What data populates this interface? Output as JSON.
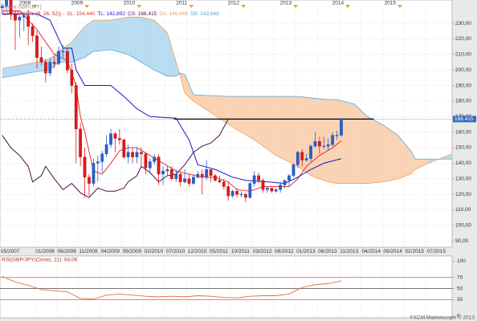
{
  "chart_data": [
    {
      "type": "candlestick",
      "title": "[Price GBP/JPY]",
      "subtitle": "ICH(GBP/JPY (9, 26, 52)) -",
      "x": [
        "05/2007",
        "06/2007",
        "07/2007",
        "08/2007",
        "09/2007",
        "10/2007",
        "11/2007",
        "12/2007",
        "01/2008",
        "02/2008",
        "03/2008",
        "04/2008",
        "05/2008",
        "06/2008",
        "07/2008",
        "08/2008",
        "09/2008",
        "10/2008",
        "11/2008",
        "12/2008",
        "01/2009",
        "02/2009",
        "03/2009",
        "04/2009",
        "05/2009",
        "06/2009",
        "07/2009",
        "08/2009",
        "09/2009",
        "10/2009",
        "11/2009",
        "12/2009",
        "01/2010",
        "02/2010",
        "03/2010",
        "04/2010",
        "05/2010",
        "06/2010",
        "07/2010",
        "08/2010",
        "09/2010",
        "10/2010",
        "11/2010",
        "12/2010",
        "01/2011",
        "02/2011",
        "03/2011",
        "04/2011",
        "05/2011",
        "06/2011",
        "07/2011",
        "08/2011",
        "09/2011",
        "10/2011",
        "11/2011",
        "12/2011",
        "01/2012",
        "02/2012",
        "03/2012",
        "04/2012",
        "05/2012",
        "06/2012",
        "07/2012",
        "08/2012",
        "09/2012",
        "10/2012",
        "11/2012",
        "12/2012",
        "01/2013",
        "02/2013",
        "03/2013",
        "04/2013",
        "05/2013",
        "06/2013",
        "07/2013",
        "08/2013",
        "09/2013",
        "10/2013",
        "11/2013"
      ],
      "open": [
        240,
        241,
        245,
        236,
        232,
        234,
        235,
        228,
        222,
        208,
        205,
        198,
        205,
        204,
        212,
        212,
        200,
        190,
        162,
        144,
        131,
        127,
        140,
        141,
        146,
        152,
        159,
        156,
        155,
        144,
        147,
        144,
        147,
        146,
        137,
        141,
        144,
        133,
        135,
        136,
        130,
        133,
        128,
        130,
        127,
        131,
        133,
        131,
        136,
        132,
        129,
        128,
        125,
        119,
        122,
        120,
        120,
        118,
        127,
        132,
        129,
        123,
        124,
        122,
        123,
        126,
        129,
        132,
        139,
        147,
        142,
        143,
        151,
        154,
        151,
        151,
        152,
        158,
        158
      ],
      "high": [
        243,
        246,
        251,
        238,
        235,
        237,
        239,
        230,
        225,
        215,
        207,
        208,
        209,
        215,
        216,
        214,
        204,
        192,
        166,
        150,
        133,
        143,
        145,
        148,
        158,
        162,
        160,
        162,
        156,
        152,
        150,
        150,
        150,
        147,
        143,
        146,
        146,
        138,
        138,
        138,
        136,
        134,
        136,
        133,
        133,
        135,
        136,
        142,
        136,
        133,
        132,
        130,
        128,
        123,
        124,
        122,
        121,
        128,
        135,
        134,
        130,
        125,
        124,
        124,
        128,
        129,
        133,
        140,
        148,
        149,
        146,
        152,
        160,
        157,
        157,
        156,
        160,
        161,
        169
      ],
      "low": [
        236,
        238,
        232,
        213,
        221,
        225,
        216,
        218,
        201,
        203,
        192,
        196,
        201,
        203,
        208,
        198,
        185,
        140,
        138,
        118,
        119,
        125,
        128,
        134,
        144,
        150,
        147,
        152,
        143,
        140,
        140,
        140,
        138,
        133,
        134,
        139,
        126,
        126,
        132,
        129,
        128,
        125,
        127,
        125,
        126,
        130,
        120,
        129,
        128,
        128,
        127,
        123,
        116,
        118,
        118,
        118,
        115,
        117,
        125,
        127,
        121,
        121,
        121,
        121,
        121,
        124,
        125,
        131,
        137,
        138,
        141,
        141,
        150,
        146,
        149,
        148,
        151,
        155,
        157
      ],
      "close": [
        241,
        245,
        236,
        232,
        234,
        235,
        228,
        222,
        208,
        205,
        198,
        205,
        204,
        212,
        212,
        200,
        190,
        162,
        144,
        131,
        127,
        140,
        141,
        146,
        152,
        159,
        156,
        155,
        144,
        147,
        144,
        147,
        146,
        137,
        141,
        144,
        133,
        135,
        136,
        130,
        133,
        128,
        130,
        127,
        131,
        133,
        131,
        136,
        132,
        129,
        128,
        125,
        119,
        122,
        120,
        120,
        118,
        127,
        132,
        129,
        123,
        124,
        122,
        123,
        126,
        129,
        132,
        139,
        147,
        142,
        143,
        151,
        154,
        151,
        151,
        152,
        158,
        158,
        168.415
      ],
      "up_color": "#2a5fd0",
      "down_color": "#e01818",
      "lines": [
        {
          "label": "SL: 154,440",
          "color": "#e83030",
          "x": [
            "05/2007",
            "09/2007",
            "11/2007",
            "01/2008",
            "03/2008",
            "05/2008",
            "08/2008",
            "10/2008",
            "11/2008",
            "12/2008",
            "02/2009",
            "04/2009",
            "06/2009",
            "08/2009",
            "10/2009",
            "12/2009",
            "03/2010",
            "06/2010",
            "09/2010",
            "12/2010",
            "03/2011",
            "06/2011",
            "09/2011",
            "11/2011",
            "02/2012",
            "05/2012",
            "08/2012",
            "11/2012",
            "01/2013",
            "03/2013",
            "06/2013",
            "09/2013",
            "11/2013"
          ],
          "values": [
            238,
            238,
            232,
            226,
            218,
            210,
            206,
            190,
            170,
            160,
            135,
            133,
            140,
            148,
            150,
            150,
            145,
            140,
            135,
            133,
            131,
            131,
            128,
            123,
            122,
            125,
            125,
            125,
            130,
            138,
            145,
            150,
            154.44
          ]
        },
        {
          "label": "TL: 142,892",
          "color": "#1818c8",
          "x": [
            "05/2007",
            "01/2008",
            "04/2008",
            "07/2008",
            "09/2008",
            "10/2008",
            "12/2008",
            "06/2009",
            "09/2009",
            "12/2009",
            "03/2010",
            "09/2010",
            "12/2010",
            "02/2011",
            "06/2011",
            "10/2011",
            "01/2012",
            "06/2012",
            "10/2012",
            "01/2013",
            "04/2013",
            "07/2013",
            "11/2013"
          ],
          "values": [
            236,
            236,
            232,
            214,
            214,
            200,
            190,
            190,
            183,
            175,
            170,
            169,
            155,
            139,
            136,
            131,
            129,
            128,
            127,
            131,
            136,
            140,
            142.892
          ]
        },
        {
          "label": "CS: 168,415",
          "color": "#4a1248",
          "x": [
            "05/2007",
            "07/2007",
            "09/2007",
            "11/2007",
            "12/2007",
            "02/2008",
            "03/2008",
            "05/2008",
            "07/2008",
            "09/2008",
            "11/2008",
            "01/2009",
            "03/2009",
            "05/2009",
            "07/2009",
            "09/2009",
            "10/2009",
            "12/2009",
            "01/2010",
            "03/2010",
            "05/2010",
            "07/2010",
            "09/2010",
            "11/2010",
            "01/2011",
            "03/2011",
            "05/2011",
            "07/2011",
            "09/2011"
          ],
          "values": [
            158,
            150,
            145,
            138,
            128,
            132,
            138,
            130,
            123,
            127,
            121,
            118,
            124,
            122,
            122,
            124,
            128,
            132,
            138,
            134,
            128,
            132,
            133,
            139,
            147,
            151,
            153,
            158,
            168.415
          ]
        }
      ],
      "cloud": {
        "x": [
          "05/2007",
          "09/2007",
          "01/2008",
          "04/2008",
          "06/2008",
          "09/2008",
          "12/2008",
          "02/2009",
          "06/2009",
          "10/2009",
          "01/2010",
          "04/2010",
          "07/2010",
          "09/2010",
          "10/2010",
          "11/2010",
          "01/2011",
          "09/2011",
          "03/2012",
          "08/2012",
          "01/2013",
          "04/2013",
          "08/2013",
          "10/2013",
          "02/2014",
          "05/2014",
          "09/2014",
          "12/2014",
          "03/2015",
          "04/2015",
          "07/2015",
          "01/2016"
        ],
        "series": [
          {
            "label": "SA: 146,668",
            "color": "#f0a060",
            "values": [
              201,
              203,
              205,
              207,
              212,
              218,
              228,
              232,
              232,
              234,
              234,
              232,
              224,
              205,
              196,
              185,
              180,
              165,
              155,
              145,
              138,
              132,
              128,
              127,
              127,
              127,
              128,
              130,
              133,
              136,
              140,
              146.668
            ]
          },
          {
            "label": "SB: 142,668",
            "color": "#5aa8d8",
            "values": [
              195,
              197,
              199,
              200,
              205,
              205,
              208,
              212,
              213,
              210,
              205,
              200,
              196,
              196,
              198,
              197,
              184,
              183,
              183,
              183,
              183,
              182,
              181,
              181,
              178,
              170,
              164,
              158,
              148,
              142.668,
              142.668,
              142.668
            ]
          }
        ],
        "above_color": "#b9dcf2",
        "below_color": "#f9d3b4"
      },
      "level_line": {
        "value": 168.4,
        "x": [
          "09/2010",
          "07/2014"
        ]
      },
      "last_price": {
        "value": 168.415,
        "label": "168,415"
      },
      "xlim": [
        "05/2007",
        "01/2016"
      ],
      "ylim": [
        86,
        245
      ],
      "yticks": [
        {
          "value": 230,
          "label": "230,00"
        },
        {
          "value": 220,
          "label": "220,00"
        },
        {
          "value": 210,
          "label": "210,00"
        },
        {
          "value": 200,
          "label": "200,00"
        },
        {
          "value": 190,
          "label": "190,00"
        },
        {
          "value": 180,
          "label": "180,00"
        },
        {
          "value": 170,
          "label": "170,00"
        },
        {
          "value": 160,
          "label": "160,00"
        },
        {
          "value": 150,
          "label": "150,00"
        },
        {
          "value": 140,
          "label": "140,00"
        },
        {
          "value": 130,
          "label": "130,00"
        },
        {
          "value": 120,
          "label": "120,00"
        },
        {
          "value": 110,
          "label": "110,00"
        },
        {
          "value": 100,
          "label": "100,00"
        },
        {
          "value": 90,
          "label": "90,00"
        }
      ],
      "xticks": [
        "05/2007",
        "01/2008",
        "06/2008",
        "11/2008",
        "04/2009",
        "09/2009",
        "02/2010",
        "07/2010",
        "12/2010",
        "05/2011",
        "10/2011",
        "03/2012",
        "08/2012",
        "01/2013",
        "06/2013",
        "11/2013",
        "04/2014",
        "09/2014",
        "02/2015",
        "07/2015"
      ],
      "year_ticks": [
        {
          "value": "01/2008",
          "label": "2008"
        },
        {
          "value": "01/2009",
          "label": "2009"
        },
        {
          "value": "01/2010",
          "label": "2010"
        },
        {
          "value": "01/2011",
          "label": "2011"
        },
        {
          "value": "01/2012",
          "label": "2012"
        },
        {
          "value": "01/2013",
          "label": "2013"
        },
        {
          "value": "01/2014",
          "label": "2014"
        },
        {
          "value": "01/2015",
          "label": "2015"
        }
      ],
      "grid": true
    },
    {
      "type": "line",
      "title": "RSI(GBP/JPY(Close), 21): 64,06",
      "x": [
        "05/2007",
        "08/2007",
        "11/2007",
        "02/2008",
        "05/2008",
        "08/2008",
        "11/2008",
        "02/2009",
        "05/2009",
        "08/2009",
        "11/2009",
        "02/2010",
        "05/2010",
        "08/2010",
        "11/2010",
        "02/2011",
        "05/2011",
        "08/2011",
        "11/2011",
        "02/2012",
        "05/2012",
        "08/2012",
        "11/2012",
        "02/2013",
        "05/2013",
        "08/2013",
        "10/2013",
        "11/2013"
      ],
      "values": [
        72,
        62,
        56,
        48,
        46,
        44,
        32,
        31,
        38,
        40,
        38,
        36,
        35,
        36,
        35,
        37,
        36,
        34,
        33,
        36,
        37,
        37,
        40,
        52,
        57,
        59,
        62,
        64.06
      ],
      "color": "#e07040",
      "xlim": [
        "05/2007",
        "01/2016"
      ],
      "ylim": [
        -3,
        109
      ],
      "yticks": [
        100,
        70,
        50,
        30,
        0
      ],
      "levels": [
        70,
        50,
        30
      ],
      "level_colors": [
        "#e03030",
        "#202020",
        "#e03030"
      ],
      "annotation": "FXCM Marketscope © 2013",
      "grid": true
    }
  ]
}
